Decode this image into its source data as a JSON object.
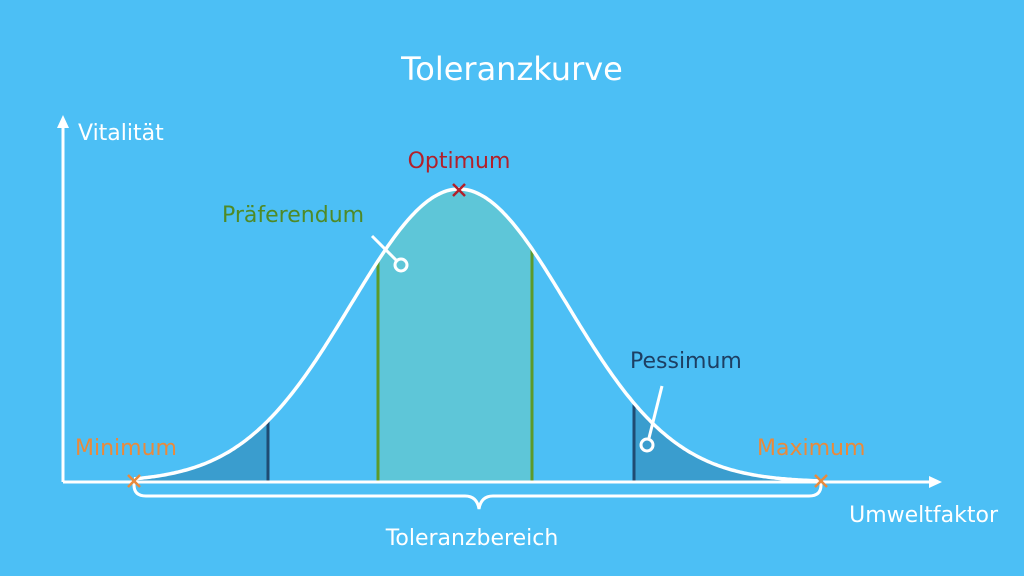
{
  "diagram": {
    "title": "Toleranzkurve",
    "y_axis_label": "Vitalität",
    "x_axis_label": "Umweltfaktor",
    "optimum_label": "Optimum",
    "preferendum_label": "Präferendum",
    "pessimum_label": "Pessimum",
    "minimum_label": "Minimum",
    "maximum_label": "Maximum",
    "tolerance_range_label": "Toleranzbereich"
  },
  "colors": {
    "background": "#4cbff5",
    "curve": "#ffffff",
    "preferendum_fill": "#5ec6d8",
    "pessimum_fill": "#3a9dce",
    "preferendum_line": "#5c9a2c",
    "pessimum_line": "#1f4b72",
    "optimum": "#b2202a",
    "extreme": "#e98a3c",
    "preferendum_text": "#4f8a26",
    "pessimum_text": "#1d3f63"
  }
}
